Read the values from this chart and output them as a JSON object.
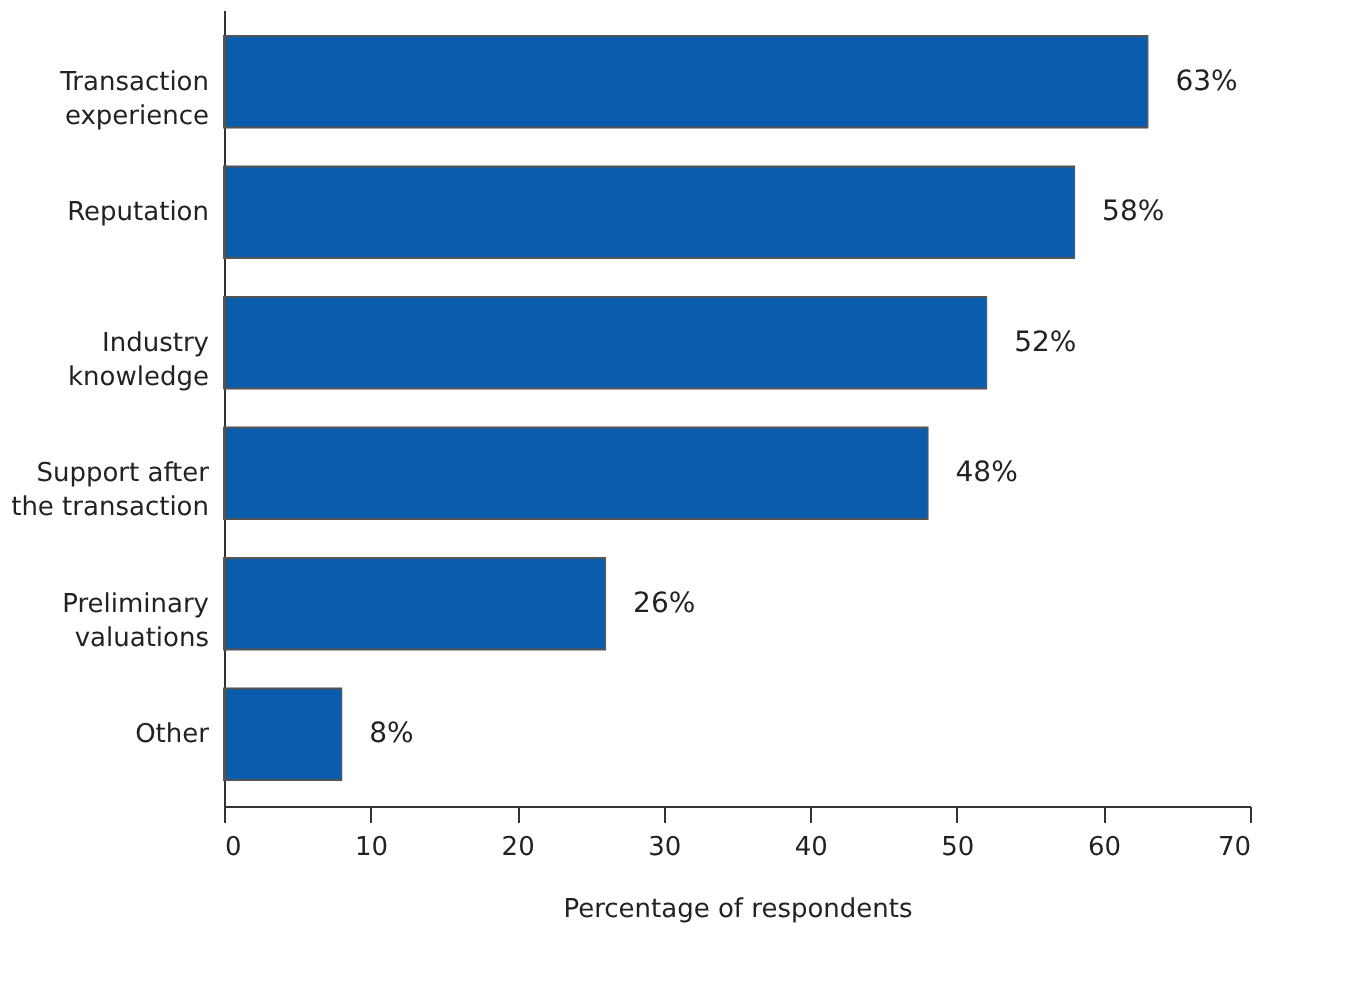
{
  "chart_data": {
    "type": "bar",
    "orientation": "horizontal",
    "xlabel": "Percentage of respondents",
    "categories": [
      "Transaction\nexperience",
      "Reputation",
      "Industry\nknowledge",
      "Support after\nthe transaction",
      "Preliminary\nvaluations",
      "Other"
    ],
    "values": [
      63,
      58,
      52,
      48,
      26,
      8
    ],
    "value_labels": [
      "63%",
      "58%",
      "52%",
      "48%",
      "26%",
      "8%"
    ],
    "color": "#0a5cad",
    "xlim": [
      0,
      70
    ],
    "xticks": [
      0,
      10,
      20,
      30,
      40,
      50,
      60,
      70
    ],
    "grid": false
  }
}
